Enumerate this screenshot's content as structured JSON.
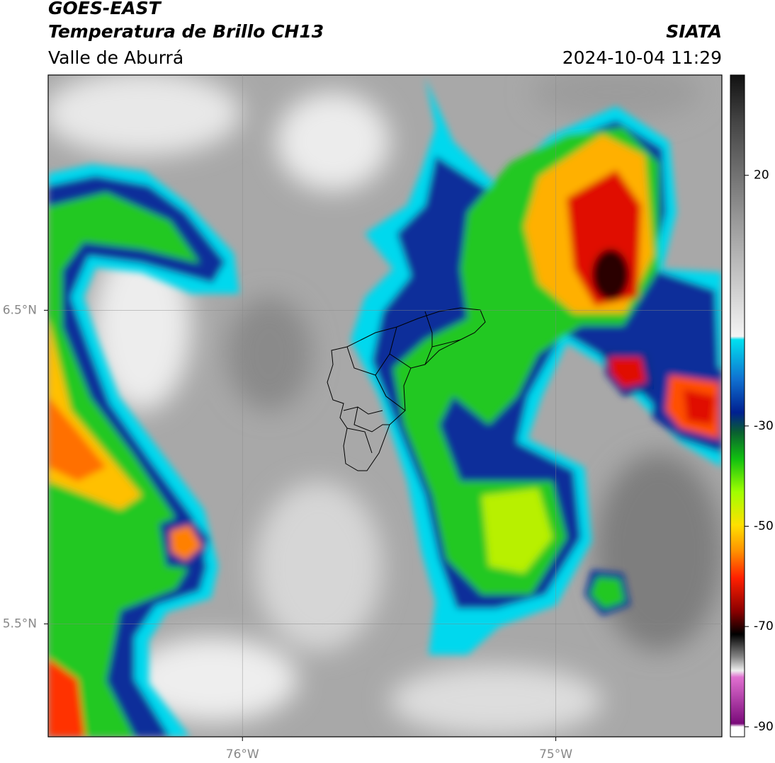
{
  "header": {
    "title": "GOES-EAST",
    "subtitle": "Temperatura de Brillo CH13",
    "region": "Valle de Aburrá",
    "source": "SIATA",
    "datetime": "2024-10-04 11:29"
  },
  "map": {
    "xlim": [
      -76.62,
      -74.47
    ],
    "ylim": [
      5.14,
      7.25
    ],
    "xticks": [
      {
        "value": -76,
        "label": "76°W"
      },
      {
        "value": -75,
        "label": "75°W"
      }
    ],
    "yticks": [
      {
        "value": 6.5,
        "label": "6.5°N"
      },
      {
        "value": 5.5,
        "label": "5.5°N"
      }
    ],
    "grid": true
  },
  "colorbar": {
    "lim": [
      -92,
      40
    ],
    "ticks": [
      20,
      -30,
      -50,
      -70,
      -90
    ]
  }
}
